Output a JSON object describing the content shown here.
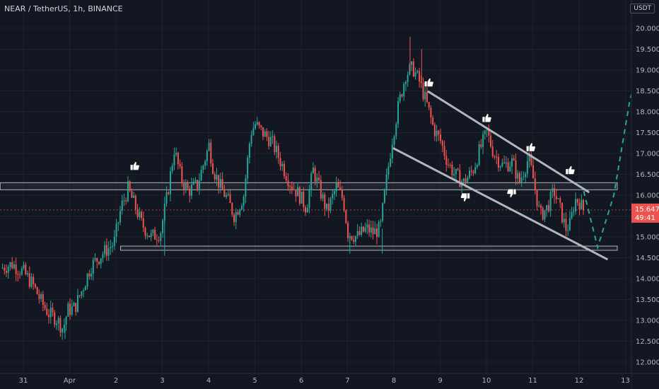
{
  "legend": {
    "symbol_line": "NEAR / TetherUS, 1h, BINANCE"
  },
  "unit_badge": "USDT",
  "price_label": {
    "price": "15.647",
    "countdown": "49:41"
  },
  "colors": {
    "background": "#131722",
    "up": "#26a69a",
    "down": "#ef5350",
    "grid": "#1e222d",
    "trendline": "#b2b5be",
    "box_fill": "#2a2e39",
    "box_border": "#b2b5be",
    "projection": "#26a69a"
  },
  "chart_data": {
    "type": "candlestick",
    "title": "NEAR / TetherUS, 1h, BINANCE",
    "ylabel": "USDT",
    "ylim": [
      11.8,
      20.45
    ],
    "x_ticks": [
      {
        "t": 0,
        "label": "31"
      },
      {
        "t": 1,
        "label": "Apr"
      },
      {
        "t": 2,
        "label": "2"
      },
      {
        "t": 3,
        "label": "3"
      },
      {
        "t": 4,
        "label": "4"
      },
      {
        "t": 5,
        "label": "5"
      },
      {
        "t": 6,
        "label": "6"
      },
      {
        "t": 7,
        "label": "7"
      },
      {
        "t": 8,
        "label": "8"
      },
      {
        "t": 9,
        "label": "9"
      },
      {
        "t": 10,
        "label": "10"
      },
      {
        "t": 11,
        "label": "11"
      },
      {
        "t": 12,
        "label": "12"
      },
      {
        "t": 13,
        "label": "13"
      }
    ],
    "y_ticks": [
      "12.000",
      "12.500",
      "13.000",
      "13.500",
      "14.000",
      "14.500",
      "15.000",
      "15.500",
      "16.000",
      "16.500",
      "17.000",
      "17.500",
      "18.000",
      "18.500",
      "19.000",
      "19.500",
      "20.000"
    ],
    "price_path": [
      [
        -0.45,
        14.25
      ],
      [
        -0.2,
        14.35
      ],
      [
        0.05,
        14.15
      ],
      [
        0.25,
        13.85
      ],
      [
        0.45,
        13.4
      ],
      [
        0.6,
        13.15
      ],
      [
        0.75,
        13.05
      ],
      [
        0.9,
        12.8
      ],
      [
        1.0,
        13.25
      ],
      [
        1.15,
        13.3
      ],
      [
        1.3,
        13.7
      ],
      [
        1.5,
        14.3
      ],
      [
        1.75,
        14.6
      ],
      [
        2.0,
        14.85
      ],
      [
        2.15,
        15.7
      ],
      [
        2.3,
        16.15
      ],
      [
        2.45,
        15.75
      ],
      [
        2.6,
        15.3
      ],
      [
        2.8,
        15.0
      ],
      [
        3.0,
        15.1
      ],
      [
        3.15,
        16.0
      ],
      [
        3.3,
        17.1
      ],
      [
        3.45,
        16.4
      ],
      [
        3.6,
        16.1
      ],
      [
        3.8,
        16.25
      ],
      [
        4.05,
        17.2
      ],
      [
        4.15,
        16.6
      ],
      [
        4.3,
        16.2
      ],
      [
        4.45,
        15.9
      ],
      [
        4.6,
        15.5
      ],
      [
        4.8,
        16.0
      ],
      [
        4.95,
        17.5
      ],
      [
        5.05,
        17.7
      ],
      [
        5.2,
        17.5
      ],
      [
        5.4,
        17.3
      ],
      [
        5.6,
        16.8
      ],
      [
        5.8,
        16.3
      ],
      [
        6.0,
        16.0
      ],
      [
        6.15,
        15.7
      ],
      [
        6.3,
        16.6
      ],
      [
        6.45,
        16.1
      ],
      [
        6.6,
        15.6
      ],
      [
        6.8,
        16.2
      ],
      [
        6.95,
        15.9
      ],
      [
        7.05,
        15.1
      ],
      [
        7.25,
        15.0
      ],
      [
        7.45,
        15.2
      ],
      [
        7.6,
        15.1
      ],
      [
        7.75,
        15.2
      ],
      [
        7.85,
        16.1
      ],
      [
        8.0,
        17.3
      ],
      [
        8.15,
        18.2
      ],
      [
        8.3,
        18.9
      ],
      [
        8.45,
        19.05
      ],
      [
        8.6,
        18.7
      ],
      [
        8.75,
        18.2
      ],
      [
        8.9,
        17.6
      ],
      [
        9.05,
        17.3
      ],
      [
        9.2,
        16.8
      ],
      [
        9.35,
        16.5
      ],
      [
        9.55,
        16.3
      ],
      [
        9.75,
        16.6
      ],
      [
        9.9,
        17.1
      ],
      [
        10.05,
        17.5
      ],
      [
        10.2,
        17.0
      ],
      [
        10.4,
        16.7
      ],
      [
        10.6,
        16.8
      ],
      [
        10.75,
        16.3
      ],
      [
        10.85,
        16.6
      ],
      [
        10.95,
        16.9
      ],
      [
        11.05,
        16.4
      ],
      [
        11.2,
        15.5
      ],
      [
        11.35,
        15.7
      ],
      [
        11.5,
        16.1
      ],
      [
        11.65,
        15.6
      ],
      [
        11.75,
        15.2
      ],
      [
        11.85,
        15.3
      ],
      [
        11.95,
        15.9
      ],
      [
        12.05,
        15.85
      ],
      [
        12.12,
        15.647
      ]
    ],
    "wicks": [
      {
        "t": 0.9,
        "low": 12.55
      },
      {
        "t": 8.35,
        "high": 19.8
      },
      {
        "t": 8.6,
        "high": 19.5
      },
      {
        "t": 3.05,
        "low": 14.55
      },
      {
        "t": 7.05,
        "low": 14.6
      },
      {
        "t": 7.75,
        "low": 14.6
      }
    ],
    "horizontal_zones": [
      {
        "t_start": -0.5,
        "t_end": 13.6,
        "y_low": 16.13,
        "y_high": 16.3
      },
      {
        "t_start": 2.1,
        "t_end": 13.7,
        "y_low": 14.68,
        "y_high": 14.78
      }
    ],
    "trendlines": [
      {
        "t1": 8.75,
        "y1": 18.48,
        "t2": 12.2,
        "y2": 16.08
      },
      {
        "t1": 8.0,
        "y1": 17.12,
        "t2": 12.6,
        "y2": 14.47
      }
    ],
    "projection": [
      [
        12.1,
        16.1
      ],
      [
        12.4,
        14.75
      ],
      [
        12.75,
        16.0
      ],
      [
        13.1,
        18.3
      ],
      [
        13.2,
        18.65
      ],
      [
        13.5,
        18.85
      ],
      [
        13.65,
        18.65
      ]
    ],
    "markers": [
      {
        "t": 2.4,
        "y": 16.7,
        "kind": "thumbs-up"
      },
      {
        "t": 8.75,
        "y": 18.7,
        "kind": "thumbs-up"
      },
      {
        "t": 10.0,
        "y": 17.85,
        "kind": "thumbs-up"
      },
      {
        "t": 10.95,
        "y": 17.15,
        "kind": "thumbs-up"
      },
      {
        "t": 11.8,
        "y": 16.6,
        "kind": "thumbs-up"
      },
      {
        "t": 9.55,
        "y": 15.95,
        "kind": "thumbs-down"
      },
      {
        "t": 10.55,
        "y": 16.05,
        "kind": "thumbs-down"
      }
    ],
    "current_price": 15.647
  }
}
